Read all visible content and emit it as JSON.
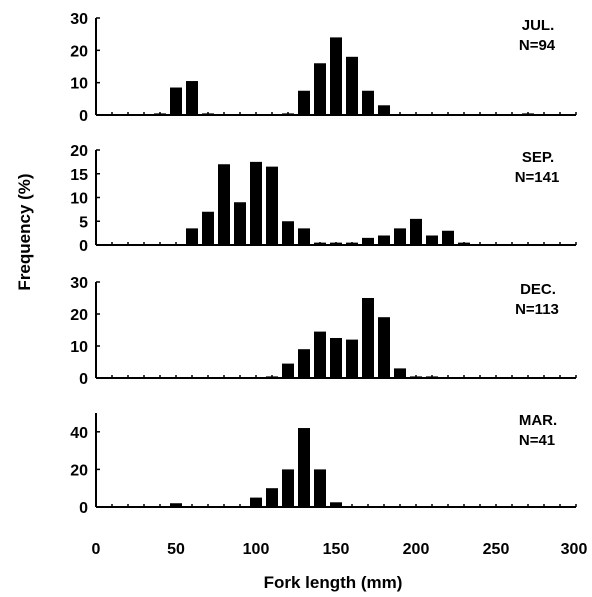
{
  "figure": {
    "ylabel": "Frequency (%)",
    "xlabel": "Fork length (mm)",
    "x_ticks": [
      "0",
      "50",
      "100",
      "150",
      "200",
      "250",
      "300"
    ]
  },
  "chart_data": [
    {
      "type": "bar",
      "panel_label": "JUL.",
      "n_label": "N=94",
      "xlim": [
        0,
        300
      ],
      "ylim": [
        0,
        30
      ],
      "y_ticks": [
        "0",
        "10",
        "20",
        "30"
      ],
      "x": [
        40,
        50,
        60,
        70,
        120,
        130,
        140,
        150,
        160,
        170,
        180,
        270
      ],
      "values": [
        0.5,
        8.5,
        10.5,
        0.5,
        0.5,
        7.5,
        16,
        24,
        18,
        7.5,
        3,
        0.5
      ]
    },
    {
      "type": "bar",
      "panel_label": "SEP.",
      "n_label": "N=141",
      "xlim": [
        0,
        300
      ],
      "ylim": [
        0,
        20
      ],
      "y_ticks": [
        "0",
        "5",
        "10",
        "15",
        "20"
      ],
      "x": [
        60,
        70,
        80,
        90,
        100,
        110,
        120,
        130,
        140,
        150,
        160,
        170,
        180,
        190,
        200,
        210,
        220,
        230
      ],
      "values": [
        3.5,
        7,
        17,
        9,
        17.5,
        16.5,
        5,
        3.5,
        0.5,
        0.5,
        0.5,
        1.5,
        2,
        3.5,
        5.5,
        2,
        3,
        0.5
      ]
    },
    {
      "type": "bar",
      "panel_label": "DEC.",
      "n_label": "N=113",
      "xlim": [
        0,
        300
      ],
      "ylim": [
        0,
        30
      ],
      "y_ticks": [
        "0",
        "10",
        "20",
        "30"
      ],
      "x": [
        110,
        120,
        130,
        140,
        150,
        160,
        170,
        180,
        190,
        200,
        210
      ],
      "values": [
        0.5,
        4.5,
        9,
        14.5,
        12.5,
        12,
        25,
        19,
        3,
        0.5,
        0.5
      ]
    },
    {
      "type": "bar",
      "panel_label": "MAR.",
      "n_label": "N=41",
      "xlim": [
        0,
        300
      ],
      "ylim": [
        0,
        50
      ],
      "y_ticks": [
        "0",
        "20",
        "40"
      ],
      "x": [
        50,
        100,
        110,
        120,
        130,
        140,
        150
      ],
      "values": [
        2,
        5,
        10,
        20,
        42,
        20,
        2.5
      ]
    }
  ]
}
